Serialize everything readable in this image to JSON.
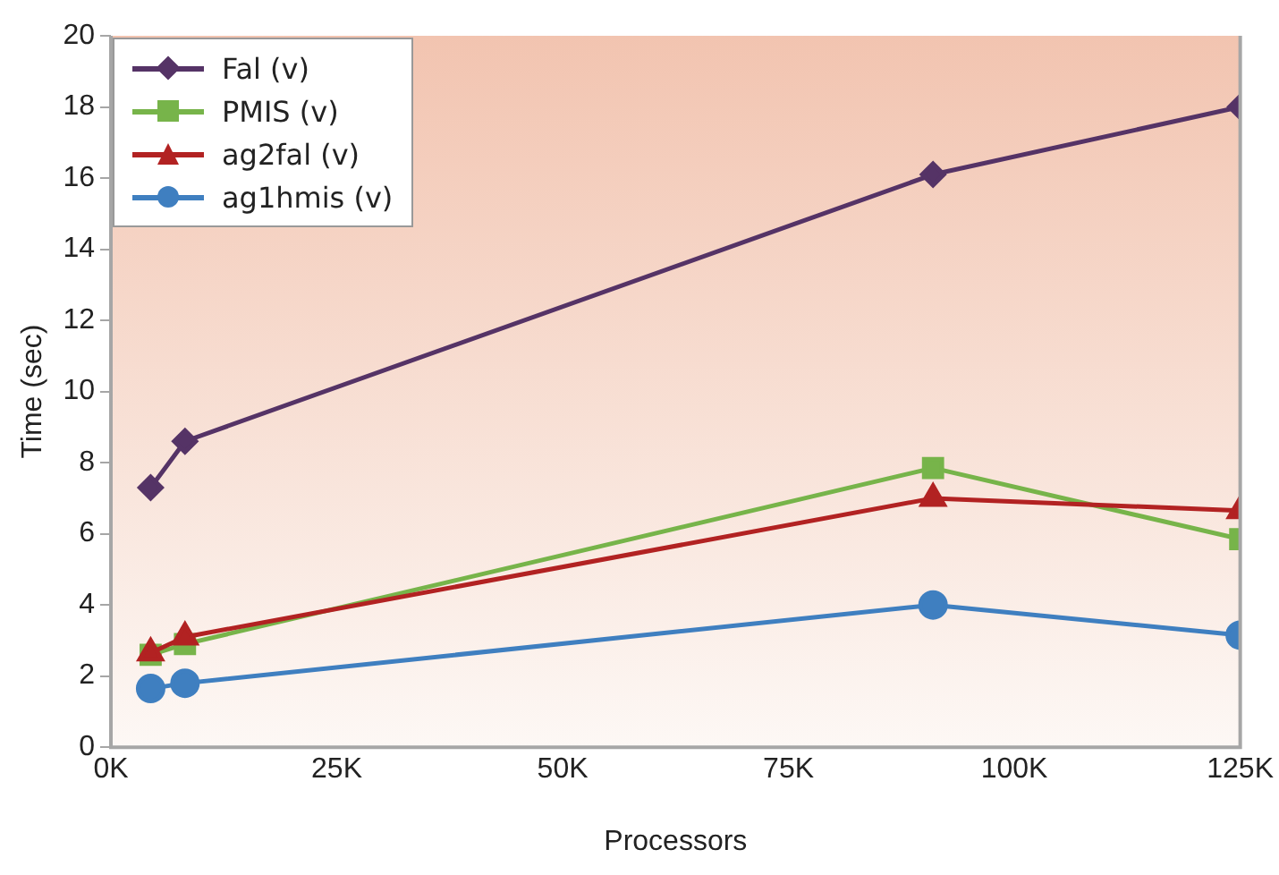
{
  "chart_data": {
    "type": "line",
    "xlabel": "Processors",
    "ylabel": "Time (sec)",
    "x": [
      4400,
      8200,
      91000,
      125000
    ],
    "xlim": [
      0,
      125000
    ],
    "xticks": [
      {
        "value": 0,
        "label": "0K"
      },
      {
        "value": 25000,
        "label": "25K"
      },
      {
        "value": 50000,
        "label": "50K"
      },
      {
        "value": 75000,
        "label": "75K"
      },
      {
        "value": 100000,
        "label": "100K"
      },
      {
        "value": 125000,
        "label": "125K"
      }
    ],
    "ylim": [
      0,
      20
    ],
    "yticks": [
      0,
      2,
      4,
      6,
      8,
      10,
      12,
      14,
      16,
      18,
      20
    ],
    "grid": false,
    "legend": "top left",
    "line_style": "solid",
    "series": [
      {
        "name": "Fal (v)",
        "color": "#553366",
        "marker": "diamond",
        "values": [
          7.3,
          8.6,
          16.1,
          18.0
        ]
      },
      {
        "name": "PMIS (v)",
        "color": "#77b44a",
        "marker": "square",
        "values": [
          2.6,
          2.9,
          7.85,
          5.85
        ]
      },
      {
        "name": "ag2fal (v)",
        "color": "#b22222",
        "marker": "triangle",
        "values": [
          2.65,
          3.1,
          7.0,
          6.65
        ]
      },
      {
        "name": "ag1hmis (v)",
        "color": "#3f7fc0",
        "marker": "circle",
        "values": [
          1.65,
          1.8,
          4.0,
          3.15
        ]
      }
    ]
  }
}
